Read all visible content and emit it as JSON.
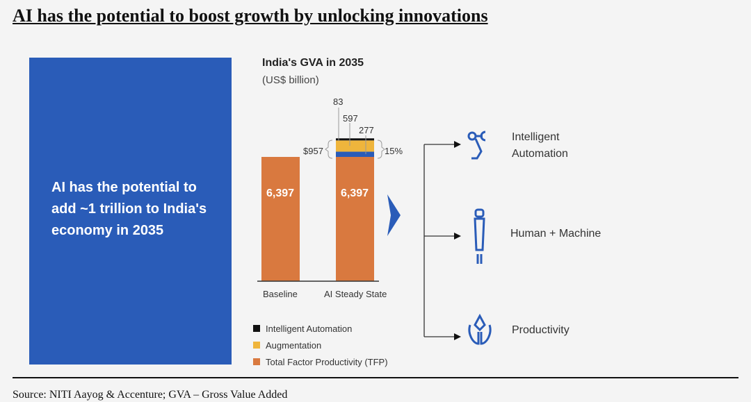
{
  "title": "AI has the potential to boost growth by unlocking innovations",
  "panel_text": "AI has the potential to add ~1 trillion to India's economy in 2035",
  "chart_data": {
    "type": "bar",
    "title": "India's GVA in 2035",
    "subtitle": "(US$ billion)",
    "categories": [
      "Baseline",
      "AI Steady State"
    ],
    "series": [
      {
        "name": "Total Factor Productivity (TFP)",
        "values": [
          6397,
          6397
        ],
        "color": "#d9793f"
      },
      {
        "name": "Blue segment",
        "values": [
          0,
          277
        ],
        "color": "#2a5cb8"
      },
      {
        "name": "Augmentation",
        "values": [
          0,
          597
        ],
        "color": "#efb53c"
      },
      {
        "name": "Intelligent Automation",
        "values": [
          0,
          83
        ],
        "color": "#111111"
      }
    ],
    "bar_labels": [
      "6,397",
      "6,397"
    ],
    "segment_labels": [
      "83",
      "597",
      "277"
    ],
    "total_label": "$957",
    "pct_label": "15%",
    "legend": [
      {
        "label": "Intelligent Automation",
        "color": "#111111"
      },
      {
        "label": "Augmentation",
        "color": "#efb53c"
      },
      {
        "label": "Total Factor Productivity (TFP)",
        "color": "#d9793f"
      }
    ]
  },
  "outcomes": [
    {
      "icon": "robot-arm-icon",
      "label1": "Intelligent",
      "label2": "Automation"
    },
    {
      "icon": "human-machine-icon",
      "label1": "Human + Machine",
      "label2": ""
    },
    {
      "icon": "lotus-icon",
      "label1": "Productivity",
      "label2": ""
    }
  ],
  "source": "Source: NITI Aayog & Accenture; GVA – Gross Value Added"
}
